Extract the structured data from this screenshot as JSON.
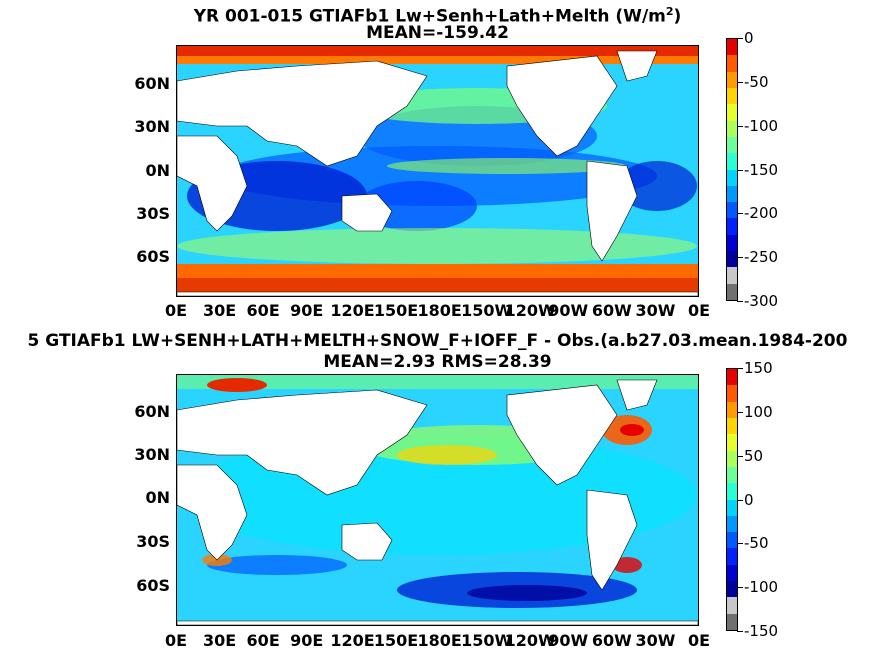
{
  "panels": [
    {
      "title_line1_pre": "YR 001-015 GTIAFb1 Lw+Senh+Lath+Melth (W/m",
      "title_sup": "2",
      "title_line1_post": ")",
      "title_line2": "MEAN=-159.42",
      "colorbar": {
        "labels": [
          "0",
          "-50",
          "-100",
          "-150",
          "-200",
          "-250",
          "-300"
        ],
        "range": [
          -300,
          0
        ]
      }
    },
    {
      "title_line1": "5 GTIAFb1 LW+SENH+LATH+MELTH+SNOW_F+IOFF_F - Obs.(a.b27.03.mean.1984-200",
      "title_line2": "MEAN=2.93 RMS=28.39",
      "colorbar": {
        "labels": [
          "150",
          "100",
          "50",
          "0",
          "-50",
          "-100",
          "-150"
        ],
        "range": [
          -150,
          150
        ]
      }
    }
  ],
  "lat_labels": [
    "60N",
    "30N",
    "0N",
    "30S",
    "60S"
  ],
  "lon_labels": [
    "0E",
    "30E",
    "60E",
    "90E",
    "120E",
    "150E",
    "180E",
    "150W",
    "120W",
    "90W",
    "60W",
    "30W",
    "0E"
  ],
  "colorbar_colors": [
    "#e60000",
    "#ff5a00",
    "#ff9a00",
    "#ffd400",
    "#e6ff2a",
    "#aaff5a",
    "#6aff9a",
    "#2affd4",
    "#00d4ff",
    "#009aff",
    "#005aff",
    "#0022ff",
    "#0000d4",
    "#00009a",
    "#c8c8c8",
    "#707070"
  ]
}
